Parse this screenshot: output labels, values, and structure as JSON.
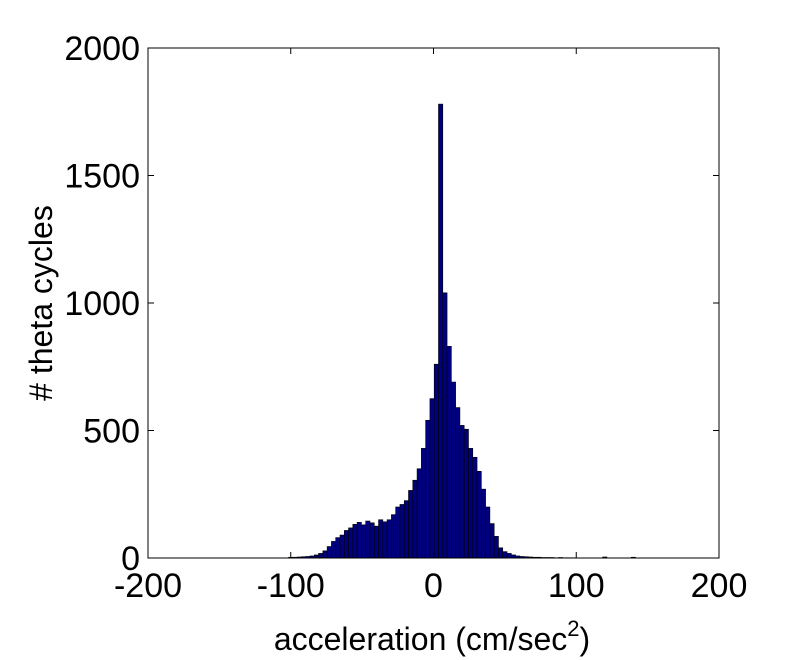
{
  "chart_data": {
    "type": "bar",
    "title": "",
    "xlabel": "acceleration (cm/sec",
    "xlabel_superscript": "2",
    "xlabel_suffix": ")",
    "ylabel": "# theta cycles",
    "xlim": [
      -200,
      200
    ],
    "ylim": [
      0,
      2000
    ],
    "xticks": [
      -200,
      -100,
      0,
      100,
      200
    ],
    "yticks": [
      0,
      500,
      1000,
      1500,
      2000
    ],
    "xtick_labels": [
      "-200",
      "-100",
      "0",
      "100",
      "200"
    ],
    "ytick_labels": [
      "0",
      "500",
      "1000",
      "1500",
      "2000"
    ],
    "grid": false,
    "bin_width": 3,
    "bar_color": "#00007F",
    "bar_edge_color": "#000000",
    "bins": [
      {
        "x": -100,
        "y": 3
      },
      {
        "x": -97,
        "y": 3
      },
      {
        "x": -94,
        "y": 4
      },
      {
        "x": -91,
        "y": 5
      },
      {
        "x": -88,
        "y": 6
      },
      {
        "x": -85,
        "y": 8
      },
      {
        "x": -82,
        "y": 12
      },
      {
        "x": -79,
        "y": 18
      },
      {
        "x": -76,
        "y": 28
      },
      {
        "x": -73,
        "y": 45
      },
      {
        "x": -70,
        "y": 65
      },
      {
        "x": -67,
        "y": 80
      },
      {
        "x": -64,
        "y": 90
      },
      {
        "x": -61,
        "y": 108
      },
      {
        "x": -58,
        "y": 118
      },
      {
        "x": -55,
        "y": 132
      },
      {
        "x": -52,
        "y": 140
      },
      {
        "x": -49,
        "y": 130
      },
      {
        "x": -46,
        "y": 145
      },
      {
        "x": -43,
        "y": 138
      },
      {
        "x": -40,
        "y": 125
      },
      {
        "x": -37,
        "y": 150
      },
      {
        "x": -34,
        "y": 142
      },
      {
        "x": -31,
        "y": 150
      },
      {
        "x": -28,
        "y": 170
      },
      {
        "x": -25,
        "y": 200
      },
      {
        "x": -22,
        "y": 210
      },
      {
        "x": -19,
        "y": 225
      },
      {
        "x": -16,
        "y": 265
      },
      {
        "x": -13,
        "y": 305
      },
      {
        "x": -10,
        "y": 350
      },
      {
        "x": -7,
        "y": 430
      },
      {
        "x": -4,
        "y": 540
      },
      {
        "x": -1,
        "y": 625
      },
      {
        "x": 2,
        "y": 760
      },
      {
        "x": 5,
        "y": 1780
      },
      {
        "x": 8,
        "y": 1040
      },
      {
        "x": 11,
        "y": 830
      },
      {
        "x": 14,
        "y": 690
      },
      {
        "x": 17,
        "y": 590
      },
      {
        "x": 20,
        "y": 520
      },
      {
        "x": 23,
        "y": 505
      },
      {
        "x": 26,
        "y": 430
      },
      {
        "x": 29,
        "y": 395
      },
      {
        "x": 32,
        "y": 340
      },
      {
        "x": 35,
        "y": 270
      },
      {
        "x": 38,
        "y": 200
      },
      {
        "x": 41,
        "y": 135
      },
      {
        "x": 44,
        "y": 85
      },
      {
        "x": 47,
        "y": 40
      },
      {
        "x": 50,
        "y": 25
      },
      {
        "x": 53,
        "y": 18
      },
      {
        "x": 56,
        "y": 12
      },
      {
        "x": 59,
        "y": 8
      },
      {
        "x": 62,
        "y": 6
      },
      {
        "x": 65,
        "y": 5
      },
      {
        "x": 68,
        "y": 4
      },
      {
        "x": 71,
        "y": 3
      },
      {
        "x": 74,
        "y": 3
      },
      {
        "x": 77,
        "y": 2
      },
      {
        "x": 80,
        "y": 2
      },
      {
        "x": 83,
        "y": 2
      },
      {
        "x": 86,
        "y": 1
      },
      {
        "x": 89,
        "y": 2
      },
      {
        "x": 92,
        "y": 1
      },
      {
        "x": 95,
        "y": 1
      },
      {
        "x": 98,
        "y": 1
      },
      {
        "x": 120,
        "y": 4
      },
      {
        "x": 140,
        "y": 3
      }
    ]
  }
}
